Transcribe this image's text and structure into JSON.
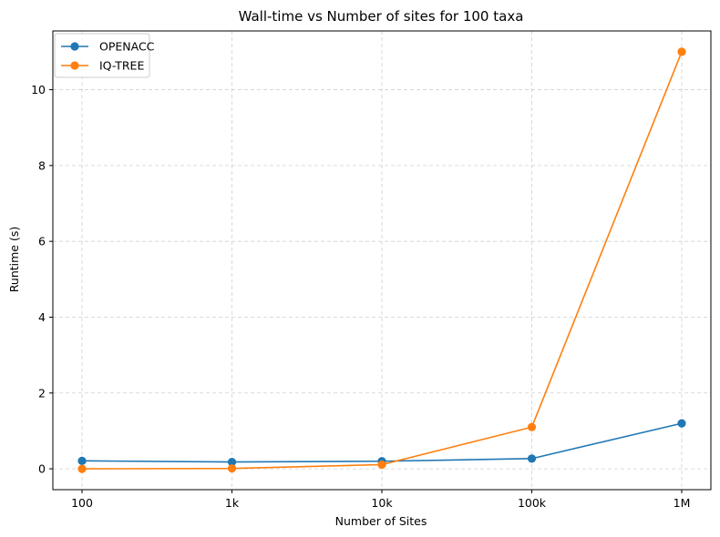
{
  "chart_data": {
    "type": "line",
    "title": "Wall-time vs Number of sites for 100 taxa",
    "xlabel": "Number of Sites",
    "ylabel": "Runtime (s)",
    "categories": [
      "100",
      "1k",
      "10k",
      "100k",
      "1M"
    ],
    "series": [
      {
        "name": "OPENACC",
        "color": "#1f77b4",
        "values": [
          0.21,
          0.18,
          0.2,
          0.27,
          1.2
        ]
      },
      {
        "name": "IQ-TREE",
        "color": "#ff7f0e",
        "values": [
          0.0,
          0.01,
          0.11,
          1.1,
          11.0
        ]
      }
    ],
    "ylim": [
      -0.55,
      11.55
    ],
    "yticks": [
      0,
      2,
      4,
      6,
      8,
      10
    ],
    "grid": true,
    "legend_position": "top-left"
  }
}
